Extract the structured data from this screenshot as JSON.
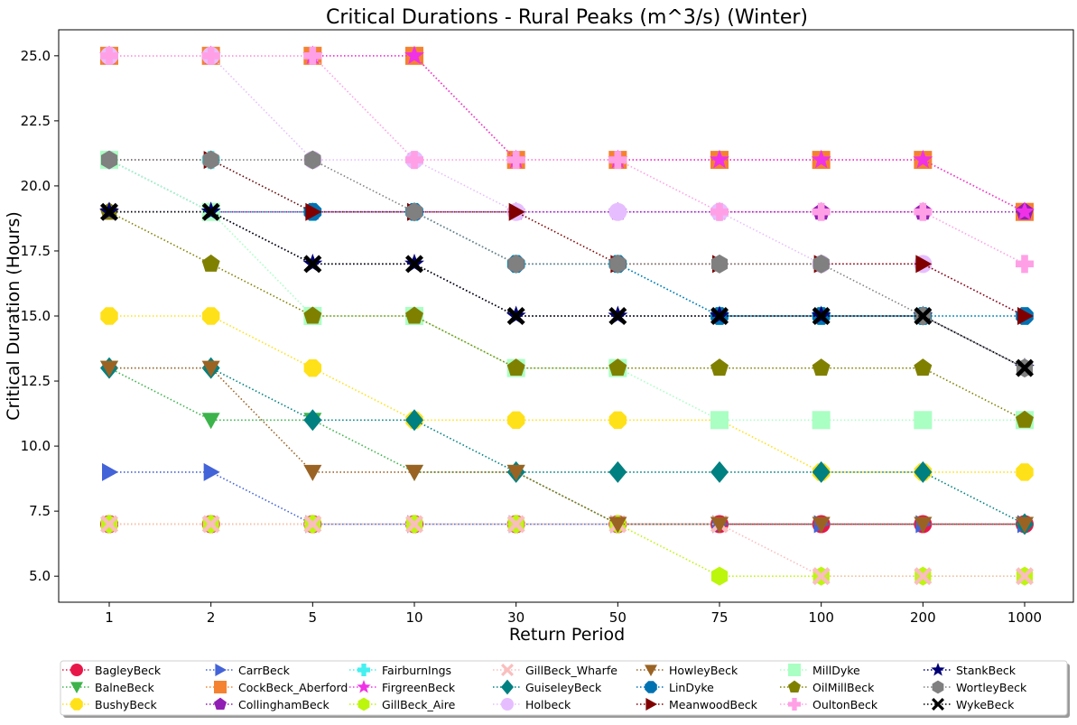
{
  "chart_data": {
    "type": "line",
    "title": "Critical Durations - Rural Peaks (m^3/s) (Winter)",
    "xlabel": "Return Period",
    "ylabel": "Critical Duration (Hours)",
    "categories": [
      "1",
      "2",
      "5",
      "10",
      "30",
      "50",
      "75",
      "100",
      "200",
      "1000"
    ],
    "ylim": [
      4.0,
      26.0
    ],
    "yticks": [
      "5.0",
      "7.5",
      "10.0",
      "12.5",
      "15.0",
      "17.5",
      "20.0",
      "22.5",
      "25.0"
    ],
    "grid": false,
    "legend_position": "bottom",
    "series": [
      {
        "name": "BagleyBeck",
        "color": "#e8174a",
        "marker": "circle",
        "values": [
          7,
          7,
          7,
          7,
          7,
          7,
          7,
          7,
          7,
          7
        ]
      },
      {
        "name": "BalneBeck",
        "color": "#3cb44b",
        "marker": "triangle-down",
        "values": [
          13,
          11,
          11,
          9,
          9,
          7,
          7,
          7,
          7,
          7
        ]
      },
      {
        "name": "BushyBeck",
        "color": "#ffe119",
        "marker": "octagon",
        "values": [
          15,
          15,
          13,
          11,
          11,
          11,
          11,
          9,
          9,
          9
        ]
      },
      {
        "name": "CarrBeck",
        "color": "#4363d8",
        "marker": "triangle-right",
        "values": [
          9,
          9,
          7,
          7,
          7,
          7,
          7,
          7,
          7,
          7
        ]
      },
      {
        "name": "CockBeck_Aberford",
        "color": "#f58231",
        "marker": "square",
        "values": [
          25,
          25,
          25,
          25,
          21,
          21,
          21,
          21,
          21,
          19
        ]
      },
      {
        "name": "CollinghamBeck",
        "color": "#911eb4",
        "marker": "pentagon",
        "values": [
          19,
          19,
          19,
          19,
          19,
          19,
          19,
          19,
          19,
          19
        ]
      },
      {
        "name": "FairburnIngs",
        "color": "#46f0f0",
        "marker": "plus",
        "values": [
          21,
          21,
          19,
          19,
          17,
          17,
          15,
          15,
          15,
          15
        ]
      },
      {
        "name": "FirgreenBeck",
        "color": "#f032e6",
        "marker": "star",
        "values": [
          25,
          25,
          25,
          25,
          21,
          21,
          21,
          21,
          21,
          19
        ]
      },
      {
        "name": "GillBeck_Aire",
        "color": "#bcf60c",
        "marker": "hexagon",
        "values": [
          7,
          7,
          7,
          7,
          7,
          7,
          5,
          5,
          5,
          5
        ]
      },
      {
        "name": "GillBeck_Wharfe",
        "color": "#fabebe",
        "marker": "x",
        "values": [
          7,
          7,
          7,
          7,
          7,
          7,
          7,
          5,
          5,
          5
        ]
      },
      {
        "name": "GuiseleyBeck",
        "color": "#008080",
        "marker": "diamond",
        "values": [
          13,
          13,
          11,
          11,
          9,
          9,
          9,
          9,
          9,
          7
        ]
      },
      {
        "name": "Holbeck",
        "color": "#e6beff",
        "marker": "circle",
        "values": [
          25,
          25,
          21,
          21,
          19,
          19,
          19,
          17,
          17,
          15
        ]
      },
      {
        "name": "HowleyBeck",
        "color": "#9a6324",
        "marker": "triangle-down",
        "values": [
          13,
          13,
          9,
          9,
          9,
          7,
          7,
          7,
          7,
          7
        ]
      },
      {
        "name": "LinDyke",
        "color": "#0072b2",
        "marker": "octagon",
        "values": [
          21,
          19,
          19,
          19,
          17,
          17,
          15,
          15,
          15,
          15
        ]
      },
      {
        "name": "MeanwoodBeck",
        "color": "#800000",
        "marker": "triangle-right",
        "values": [
          21,
          21,
          19,
          19,
          19,
          17,
          17,
          17,
          17,
          15
        ]
      },
      {
        "name": "MillDyke",
        "color": "#aaffc3",
        "marker": "square",
        "values": [
          21,
          19,
          15,
          15,
          13,
          13,
          11,
          11,
          11,
          11
        ]
      },
      {
        "name": "OilMillBeck",
        "color": "#808000",
        "marker": "pentagon",
        "values": [
          19,
          17,
          15,
          15,
          13,
          13,
          13,
          13,
          13,
          11
        ]
      },
      {
        "name": "OultonBeck",
        "color": "#ffa0e6",
        "marker": "plus",
        "values": [
          25,
          25,
          25,
          21,
          21,
          21,
          19,
          19,
          19,
          17
        ]
      },
      {
        "name": "StankBeck",
        "color": "#000075",
        "marker": "star",
        "values": [
          19,
          19,
          17,
          17,
          15,
          15,
          15,
          15,
          15,
          13
        ]
      },
      {
        "name": "WortleyBeck",
        "color": "#808080",
        "marker": "hexagon",
        "values": [
          21,
          21,
          21,
          19,
          17,
          17,
          17,
          17,
          15,
          13
        ]
      },
      {
        "name": "WykeBeck",
        "color": "#000000",
        "marker": "x",
        "values": [
          19,
          19,
          17,
          17,
          15,
          15,
          15,
          15,
          15,
          13
        ]
      }
    ]
  }
}
